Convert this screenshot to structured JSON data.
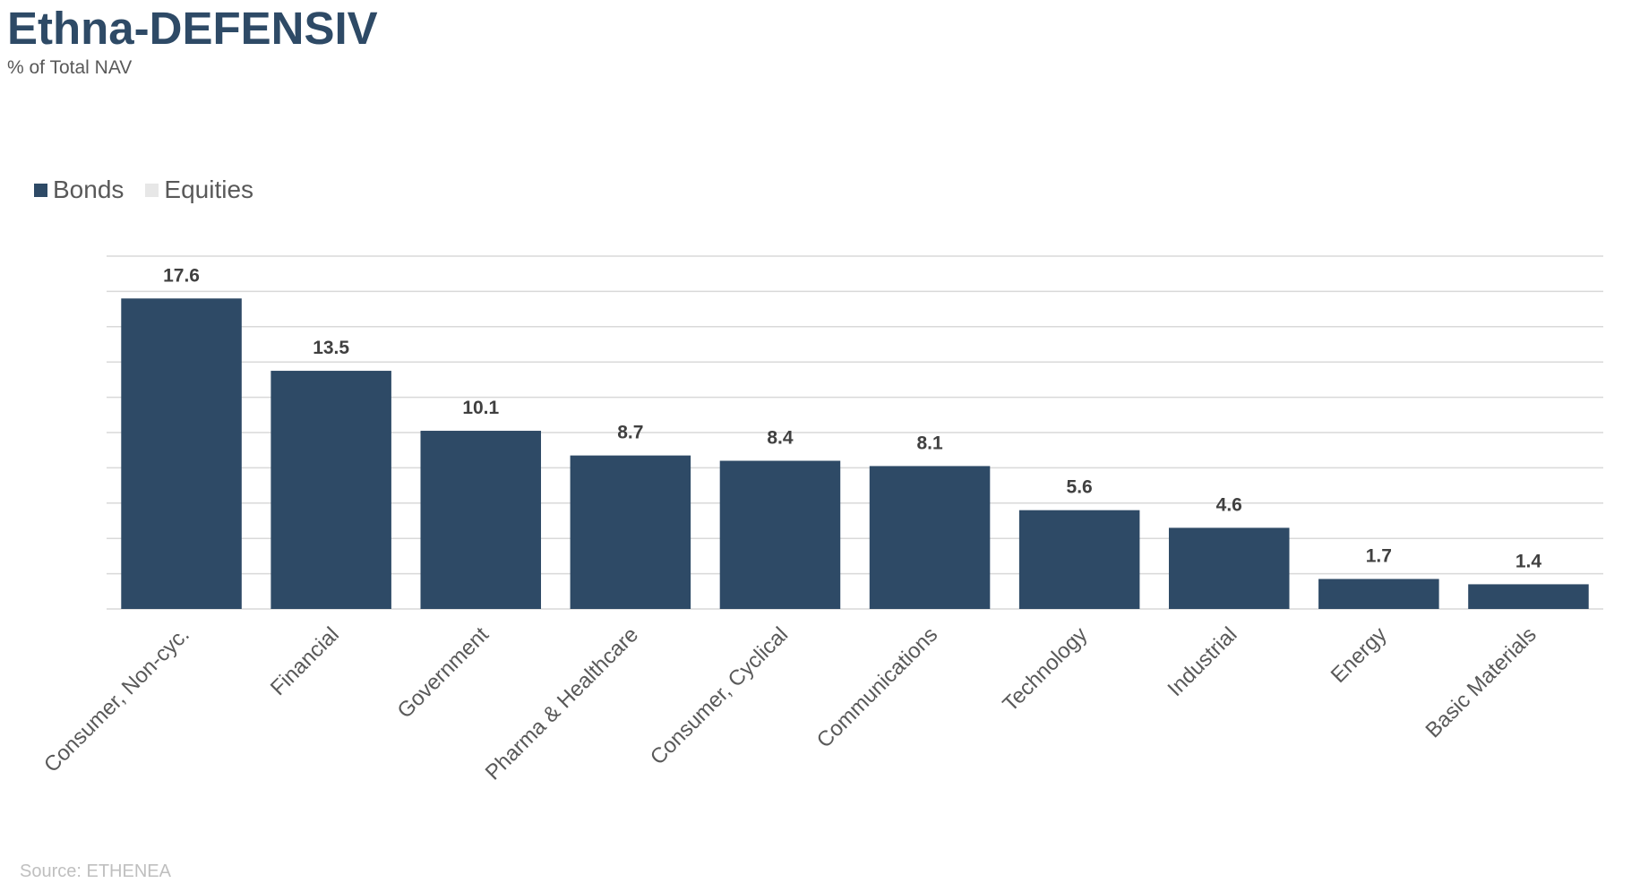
{
  "title": "Ethna-DEFENSIV",
  "subtitle": "% of Total NAV",
  "source": "Source: ETHENEA",
  "colors": {
    "bonds": "#2e4a66",
    "equities": "#e7e7e7",
    "grid": "#d9d9d9",
    "label": "#404040",
    "tick": "#595959"
  },
  "legend": [
    {
      "name": "Bonds",
      "color": "#2e4a66"
    },
    {
      "name": "Equities",
      "color": "#e7e7e7"
    }
  ],
  "chart_data": {
    "type": "bar",
    "title": "Ethna-DEFENSIV",
    "subtitle": "% of Total NAV",
    "categories": [
      "Consumer, Non-cyc.",
      "Financial",
      "Government",
      "Pharma & Healthcare",
      "Consumer, Cyclical",
      "Communications",
      "Technology",
      "Industrial",
      "Energy",
      "Basic Materials"
    ],
    "series": [
      {
        "name": "Bonds",
        "values": [
          17.6,
          13.5,
          10.1,
          8.7,
          8.4,
          8.1,
          5.6,
          4.6,
          1.7,
          1.4
        ]
      },
      {
        "name": "Equities",
        "values": [
          0,
          0,
          0,
          0,
          0,
          0,
          0,
          0,
          0,
          0
        ]
      }
    ],
    "data_labels": [
      "17.6",
      "13.5",
      "10.1",
      "8.7",
      "8.4",
      "8.1",
      "5.6",
      "4.6",
      "1.7",
      "1.4"
    ],
    "ylim": [
      0,
      20
    ],
    "ystep": 2,
    "grid": true,
    "legend_position": "top-left",
    "xlabel": "",
    "ylabel": ""
  }
}
